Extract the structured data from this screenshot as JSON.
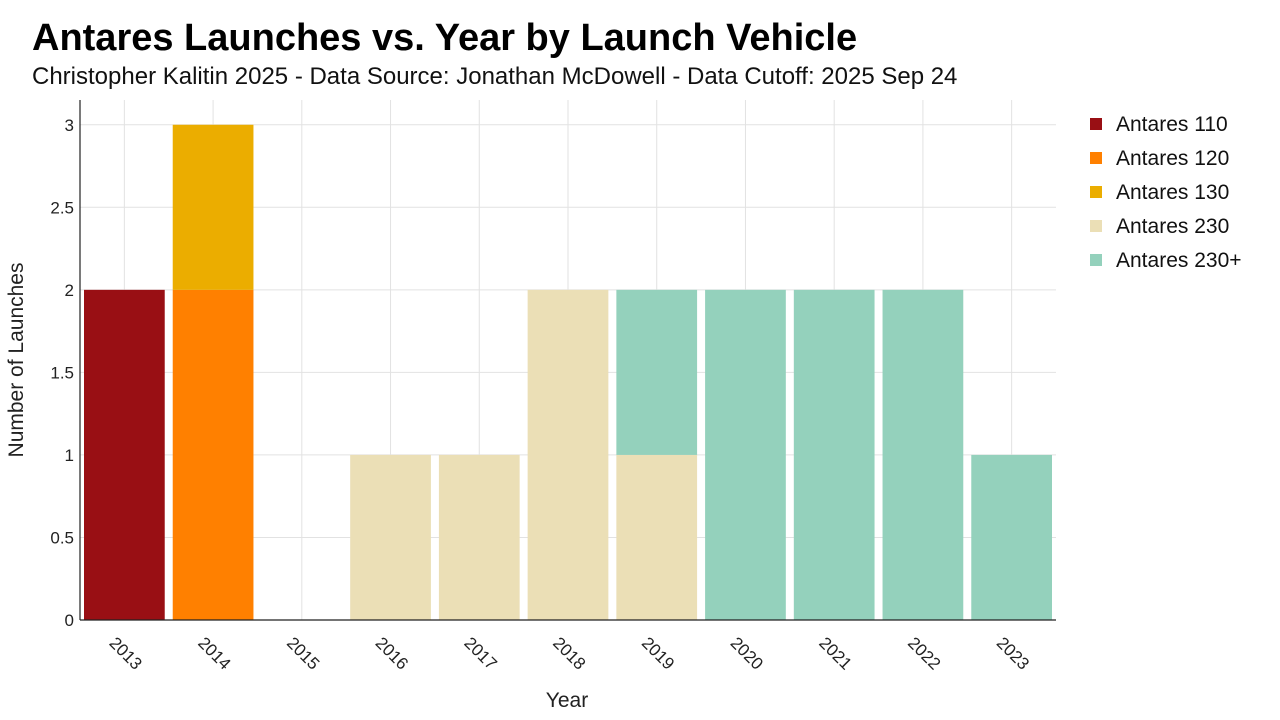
{
  "chart_data": {
    "type": "bar",
    "stacked": true,
    "title": "Antares Launches vs. Year by Launch Vehicle",
    "subtitle": "Christopher Kalitin 2025 - Data Source: Jonathan McDowell - Data Cutoff: 2025 Sep 24",
    "xlabel": "Year",
    "ylabel": "Number of Launches",
    "categories": [
      "2013",
      "2014",
      "2015",
      "2016",
      "2017",
      "2018",
      "2019",
      "2020",
      "2021",
      "2022",
      "2023"
    ],
    "ylim": [
      0,
      3.15
    ],
    "yticks": [
      0,
      0.5,
      1,
      1.5,
      2,
      2.5,
      3
    ],
    "ytick_labels": [
      "0",
      "0.5",
      "1",
      "1.5",
      "2",
      "2.5",
      "3"
    ],
    "grid": true,
    "legend_position": "right",
    "series": [
      {
        "name": "Antares 110",
        "color": "#990f14",
        "values": [
          2,
          0,
          0,
          0,
          0,
          0,
          0,
          0,
          0,
          0,
          0
        ]
      },
      {
        "name": "Antares 120",
        "color": "#ff8000",
        "values": [
          0,
          2,
          0,
          0,
          0,
          0,
          0,
          0,
          0,
          0,
          0
        ]
      },
      {
        "name": "Antares 130",
        "color": "#ebad00",
        "values": [
          0,
          1,
          0,
          0,
          0,
          0,
          0,
          0,
          0,
          0,
          0
        ]
      },
      {
        "name": "Antares 230",
        "color": "#ebdfb6",
        "values": [
          0,
          0,
          0,
          1,
          1,
          2,
          1,
          0,
          0,
          0,
          0
        ]
      },
      {
        "name": "Antares 230+",
        "color": "#94d1bc",
        "values": [
          0,
          0,
          0,
          0,
          0,
          0,
          1,
          2,
          2,
          2,
          1
        ]
      }
    ]
  }
}
